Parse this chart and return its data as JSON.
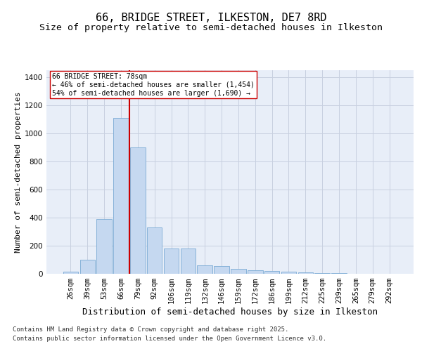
{
  "title": "66, BRIDGE STREET, ILKESTON, DE7 8RD",
  "subtitle": "Size of property relative to semi-detached houses in Ilkeston",
  "xlabel": "Distribution of semi-detached houses by size in Ilkeston",
  "ylabel": "Number of semi-detached properties",
  "footnote1": "Contains HM Land Registry data © Crown copyright and database right 2025.",
  "footnote2": "Contains public sector information licensed under the Open Government Licence v3.0.",
  "bar_labels": [
    "26sqm",
    "39sqm",
    "53sqm",
    "66sqm",
    "79sqm",
    "92sqm",
    "106sqm",
    "119sqm",
    "132sqm",
    "146sqm",
    "159sqm",
    "172sqm",
    "186sqm",
    "199sqm",
    "212sqm",
    "225sqm",
    "239sqm",
    "265sqm",
    "279sqm",
    "292sqm"
  ],
  "bar_values": [
    15,
    100,
    390,
    1110,
    900,
    330,
    180,
    180,
    60,
    55,
    35,
    25,
    20,
    15,
    10,
    5,
    5,
    2,
    1,
    1
  ],
  "bar_color": "#c5d8f0",
  "bar_edge_color": "#7aaad4",
  "property_line_color": "#cc0000",
  "property_line_index": 4,
  "annotation_text": "66 BRIDGE STREET: 78sqm\n← 46% of semi-detached houses are smaller (1,454)\n54% of semi-detached houses are larger (1,690) →",
  "annotation_box_color": "#ffffff",
  "annotation_box_edge": "#cc0000",
  "ylim": [
    0,
    1450
  ],
  "yticks": [
    0,
    200,
    400,
    600,
    800,
    1000,
    1200,
    1400
  ],
  "bg_color": "#e8eef8",
  "grid_color": "#c8d0e0",
  "title_fontsize": 11,
  "subtitle_fontsize": 9.5,
  "xlabel_fontsize": 9,
  "ylabel_fontsize": 8,
  "tick_fontsize": 7.5,
  "annotation_fontsize": 7,
  "footnote_fontsize": 6.5
}
